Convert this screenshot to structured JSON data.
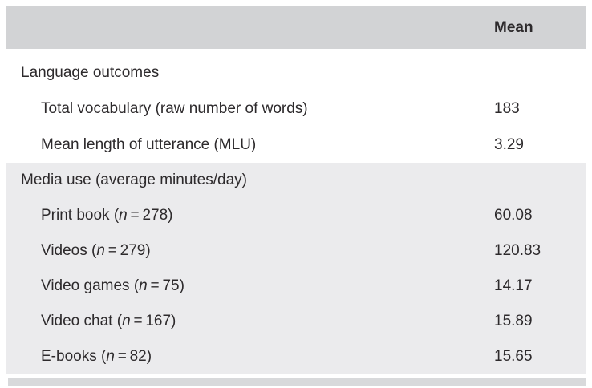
{
  "colors": {
    "header_bg": "#d2d3d5",
    "section_bg": "#ebebed",
    "strip_bg": "#d8d9db",
    "text": "#2d2a2c"
  },
  "table": {
    "header": {
      "mean_label": "Mean"
    },
    "sections": [
      {
        "title": "Language outcomes",
        "shaded": false,
        "rows": [
          {
            "label_prefix": "Total vocabulary (raw number of words)",
            "mean": "183"
          },
          {
            "label_prefix": "Mean length of utterance (MLU)",
            "mean": "3.29"
          }
        ]
      },
      {
        "title": "Media use (average minutes/day)",
        "shaded": true,
        "rows": [
          {
            "label_prefix": "Print book (",
            "n": "n",
            "label_suffix": " = 278)",
            "mean": "60.08"
          },
          {
            "label_prefix": "Videos (",
            "n": "n",
            "label_suffix": " = 279)",
            "mean": "120.83"
          },
          {
            "label_prefix": "Video games (",
            "n": "n",
            "label_suffix": " = 75)",
            "mean": "14.17"
          },
          {
            "label_prefix": "Video chat (",
            "n": "n",
            "label_suffix": " = 167)",
            "mean": "15.89"
          },
          {
            "label_prefix": "E-books (",
            "n": "n",
            "label_suffix": " = 82)",
            "mean": "15.65"
          }
        ]
      }
    ]
  }
}
